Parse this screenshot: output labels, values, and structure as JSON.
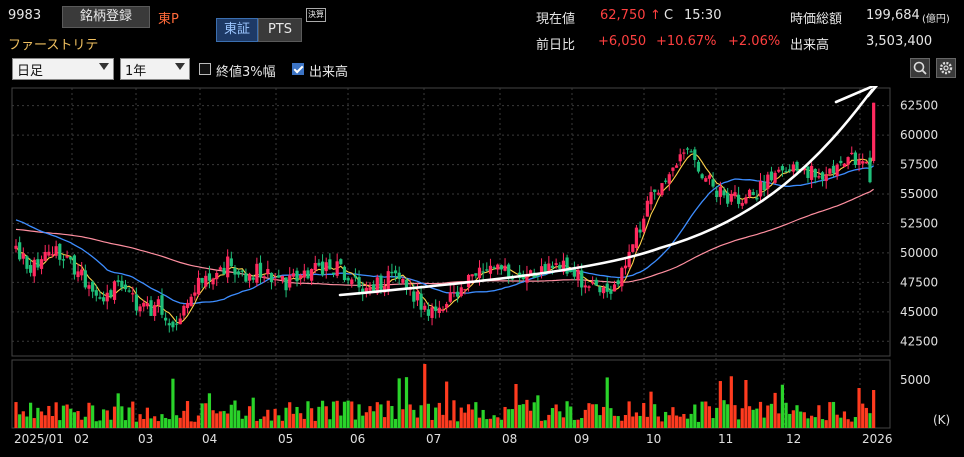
{
  "header": {
    "code": "9983",
    "register_label": "銘柄登録",
    "market": "東P",
    "company": "ファーストリテ",
    "tab_tse": "東証",
    "tab_pts": "PTS",
    "settle_badge": "決算",
    "price_label": "現在値",
    "price": "62,750",
    "price_arrow": "↑",
    "price_flag": "C",
    "time": "15:30",
    "change_label": "前日比",
    "change": "+6,050",
    "change_pct": "+10.67%",
    "change_pct2": "+2.06%",
    "mcap_label": "時価総額",
    "mcap": "199,684",
    "mcap_unit": "(億円)",
    "volume_label": "出来高",
    "volume": "3,503,400"
  },
  "controls": {
    "period": "日足",
    "range": "1年",
    "option1_label": "終値3%幅",
    "option1_checked": false,
    "option2_label": "出来高",
    "option2_checked": true
  },
  "colors": {
    "up": "#ff2a5f",
    "down": "#1fbf7a",
    "ma_short": "#ffd24a",
    "ma_mid": "#3d8dff",
    "ma_long": "#ff8fa0",
    "vol_up": "#ff3b1f",
    "vol_down": "#2ad32a",
    "accent_red": "#ff4040"
  },
  "chart_data": {
    "type": "candlestick",
    "y_ticks": [
      "62500",
      "60000",
      "57500",
      "55000",
      "52500",
      "50000",
      "47500",
      "45000",
      "42500"
    ],
    "ylim": [
      41250,
      64000
    ],
    "volume_tick": "5000",
    "volume_unit": "(K)",
    "x_labels": [
      "2025/01",
      "02",
      "03",
      "04",
      "05",
      "06",
      "07",
      "08",
      "09",
      "10",
      "11",
      "12",
      "2026"
    ],
    "close_path": [
      50500,
      48500,
      49600,
      50100,
      48600,
      47500,
      46300,
      47000,
      46200,
      45200,
      45500,
      44100,
      46000,
      47800,
      48200,
      49300,
      47800,
      48500,
      48200,
      47400,
      47900,
      48600,
      48900,
      48400,
      47200,
      47000,
      47700,
      48400,
      46300,
      45000,
      45600,
      46500,
      47900,
      48200,
      48600,
      48300,
      48200,
      49000,
      48900,
      48600,
      47400,
      46400,
      46900,
      49300,
      53000,
      55600,
      56500,
      59000,
      57200,
      55600,
      54800,
      54200,
      55100,
      56200,
      56900,
      56800,
      57100,
      56800,
      57500,
      58100,
      56700
    ],
    "last_candle": {
      "open": 57800,
      "close": 62750,
      "high": 62750,
      "low": 57600
    },
    "ma_colors_note": "short, mid, long moving averages"
  }
}
